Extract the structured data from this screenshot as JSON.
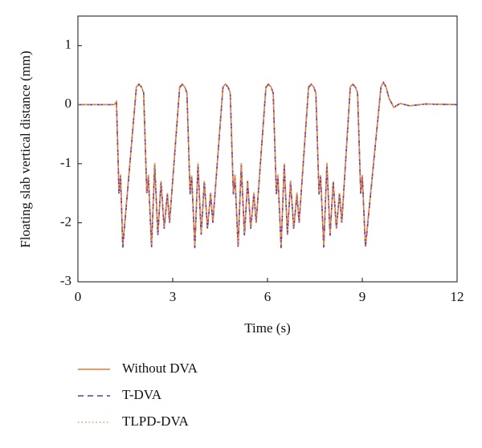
{
  "chart_data": {
    "type": "line",
    "x_label": "Time (s)",
    "y_label": "Floating slab vertical distance (mm)",
    "xlim": [
      0,
      12
    ],
    "xticks": [
      0,
      3,
      6,
      9,
      12
    ],
    "ylim": [
      -3,
      1.5
    ],
    "yticks": [
      -3,
      -2,
      -1,
      0,
      1
    ],
    "x": [
      0,
      1.15,
      1.22,
      1.3,
      1.35,
      1.42,
      1.85,
      1.93,
      2.01,
      2.08,
      2.18,
      2.23,
      2.33,
      2.43,
      2.53,
      2.63,
      2.73,
      2.83,
      2.9,
      3.22,
      3.3,
      3.38,
      3.45,
      3.55,
      3.6,
      3.7,
      3.8,
      3.9,
      4.0,
      4.1,
      4.2,
      4.27,
      4.59,
      4.67,
      4.75,
      4.82,
      4.92,
      4.97,
      5.07,
      5.17,
      5.27,
      5.37,
      5.47,
      5.57,
      5.64,
      5.95,
      6.03,
      6.11,
      6.18,
      6.28,
      6.33,
      6.43,
      6.53,
      6.63,
      6.73,
      6.83,
      6.93,
      7.0,
      7.3,
      7.38,
      7.46,
      7.53,
      7.63,
      7.68,
      7.78,
      7.88,
      7.98,
      8.08,
      8.18,
      8.28,
      8.35,
      8.62,
      8.7,
      8.78,
      8.85,
      8.95,
      9.0,
      9.1,
      9.59,
      9.67,
      9.75,
      9.85,
      10.0,
      10.2,
      10.5,
      11,
      12
    ],
    "series": [
      {
        "name": "Without DVA",
        "color": "#e8782c",
        "style": "solid",
        "values": [
          0,
          0,
          0.05,
          -1.5,
          -1.2,
          -2.4,
          0.3,
          0.35,
          0.3,
          0.2,
          -1.5,
          -1.2,
          -2.4,
          -1.0,
          -2.2,
          -1.3,
          -2.1,
          -1.5,
          -2.0,
          0.3,
          0.35,
          0.3,
          0.2,
          -1.5,
          -1.2,
          -2.4,
          -1.0,
          -2.2,
          -1.3,
          -2.1,
          -1.5,
          -2.0,
          0.3,
          0.35,
          0.3,
          0.2,
          -1.5,
          -1.2,
          -2.4,
          -1.0,
          -2.2,
          -1.3,
          -2.1,
          -1.5,
          -2.0,
          0.3,
          0.35,
          0.3,
          0.2,
          -1.5,
          -1.2,
          -2.4,
          -1.0,
          -2.2,
          -1.3,
          -2.1,
          -1.5,
          -2.0,
          0.3,
          0.35,
          0.3,
          0.2,
          -1.5,
          -1.2,
          -2.4,
          -1.0,
          -2.2,
          -1.3,
          -2.1,
          -1.5,
          -2.0,
          0.3,
          0.35,
          0.3,
          0.2,
          -1.5,
          -1.2,
          -2.4,
          0.3,
          0.38,
          0.3,
          0.1,
          -0.05,
          0.02,
          -0.02,
          0.01,
          0
        ]
      },
      {
        "name": "T-DVA",
        "color": "#5c3f9a",
        "style": "dashed",
        "values": [
          0,
          0,
          0.04,
          -1.52,
          -1.2,
          -2.42,
          0.29,
          0.34,
          0.3,
          0.2,
          -1.52,
          -1.22,
          -2.42,
          -1.02,
          -2.22,
          -1.3,
          -2.1,
          -1.52,
          -2.0,
          0.29,
          0.34,
          0.3,
          0.2,
          -1.52,
          -1.22,
          -2.43,
          -1.02,
          -2.2,
          -1.3,
          -2.1,
          -1.5,
          -2.0,
          0.29,
          0.34,
          0.3,
          0.2,
          -1.52,
          -1.22,
          -2.42,
          -1.02,
          -2.22,
          -1.3,
          -2.1,
          -1.5,
          -2.0,
          0.29,
          0.34,
          0.3,
          0.2,
          -1.52,
          -1.22,
          -2.43,
          -1.02,
          -2.2,
          -1.3,
          -2.1,
          -1.52,
          -2.0,
          0.29,
          0.34,
          0.3,
          0.2,
          -1.52,
          -1.22,
          -2.42,
          -1.02,
          -2.22,
          -1.3,
          -2.1,
          -1.5,
          -2.0,
          0.29,
          0.34,
          0.3,
          0.2,
          -1.52,
          -1.22,
          -2.42,
          0.29,
          0.37,
          0.3,
          0.1,
          -0.04,
          0.02,
          -0.02,
          0.01,
          0
        ]
      },
      {
        "name": "TLPD-DVA",
        "color": "#f0965a",
        "style": "dotted",
        "values": [
          0,
          0,
          0.05,
          -1.48,
          -1.18,
          -2.38,
          0.3,
          0.35,
          0.3,
          0.2,
          -1.48,
          -1.18,
          -2.38,
          -0.98,
          -2.18,
          -1.28,
          -2.08,
          -1.48,
          -1.98,
          0.3,
          0.35,
          0.3,
          0.2,
          -1.48,
          -1.18,
          -2.38,
          -0.98,
          -2.18,
          -1.28,
          -2.08,
          -1.48,
          -1.98,
          0.3,
          0.35,
          0.3,
          0.2,
          -1.48,
          -1.18,
          -2.38,
          -0.98,
          -2.18,
          -1.28,
          -2.08,
          -1.48,
          -1.98,
          0.3,
          0.35,
          0.3,
          0.2,
          -1.48,
          -1.18,
          -2.38,
          -0.98,
          -2.18,
          -1.28,
          -2.08,
          -1.48,
          -1.98,
          0.3,
          0.35,
          0.3,
          0.2,
          -1.48,
          -1.18,
          -2.38,
          -0.98,
          -2.18,
          -1.28,
          -2.08,
          -1.48,
          -1.98,
          0.3,
          0.35,
          0.3,
          0.2,
          -1.48,
          -1.18,
          -2.38,
          0.3,
          0.38,
          0.3,
          0.1,
          -0.05,
          0.02,
          -0.02,
          0.01,
          0
        ]
      }
    ]
  }
}
